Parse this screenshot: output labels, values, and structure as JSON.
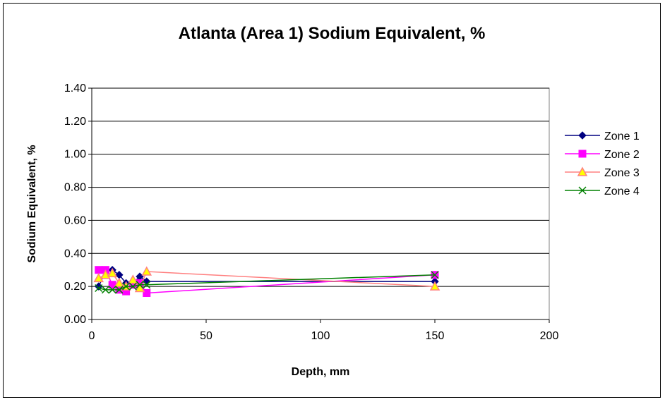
{
  "chart_data": {
    "type": "line",
    "title": "Atlanta (Area 1) Sodium Equivalent, %",
    "xlabel": "Depth, mm",
    "ylabel": "Sodium Equivalent, %",
    "xlim": [
      0,
      200
    ],
    "ylim": [
      0,
      1.4
    ],
    "xticks": [
      0,
      50,
      100,
      150,
      200
    ],
    "yticks": [
      0.0,
      0.2,
      0.4,
      0.6,
      0.8,
      1.0,
      1.2,
      1.4
    ],
    "xtick_labels": [
      "0",
      "50",
      "100",
      "150",
      "200"
    ],
    "ytick_labels": [
      "0.00",
      "0.20",
      "0.40",
      "0.60",
      "0.80",
      "1.00",
      "1.20",
      "1.40"
    ],
    "grid": "horizontal",
    "legend_position": "right",
    "series": [
      {
        "name": "Zone 1",
        "color": "#000080",
        "marker": "diamond",
        "x": [
          3,
          6,
          9,
          12,
          15,
          18,
          21,
          24,
          150
        ],
        "y": [
          0.2,
          0.29,
          0.3,
          0.27,
          0.22,
          0.22,
          0.26,
          0.23,
          0.23
        ]
      },
      {
        "name": "Zone 2",
        "color": "#FF00FF",
        "marker": "square",
        "x": [
          3,
          6,
          9,
          12,
          15,
          18,
          21,
          24,
          150
        ],
        "y": [
          0.3,
          0.3,
          0.21,
          0.18,
          0.17,
          0.21,
          0.22,
          0.16,
          0.27
        ]
      },
      {
        "name": "Zone 3",
        "color": "#FF8080",
        "marker_fill": "#FFFF00",
        "marker": "triangle",
        "x": [
          3,
          6,
          9,
          12,
          15,
          18,
          21,
          24,
          150
        ],
        "y": [
          0.25,
          0.27,
          0.28,
          0.22,
          0.2,
          0.24,
          0.19,
          0.29,
          0.2
        ]
      },
      {
        "name": "Zone 4",
        "color": "#008000",
        "marker": "x",
        "x": [
          3,
          6,
          9,
          12,
          15,
          18,
          21,
          24,
          150
        ],
        "y": [
          0.19,
          0.18,
          0.18,
          0.18,
          0.2,
          0.2,
          0.21,
          0.21,
          0.27
        ]
      }
    ]
  }
}
